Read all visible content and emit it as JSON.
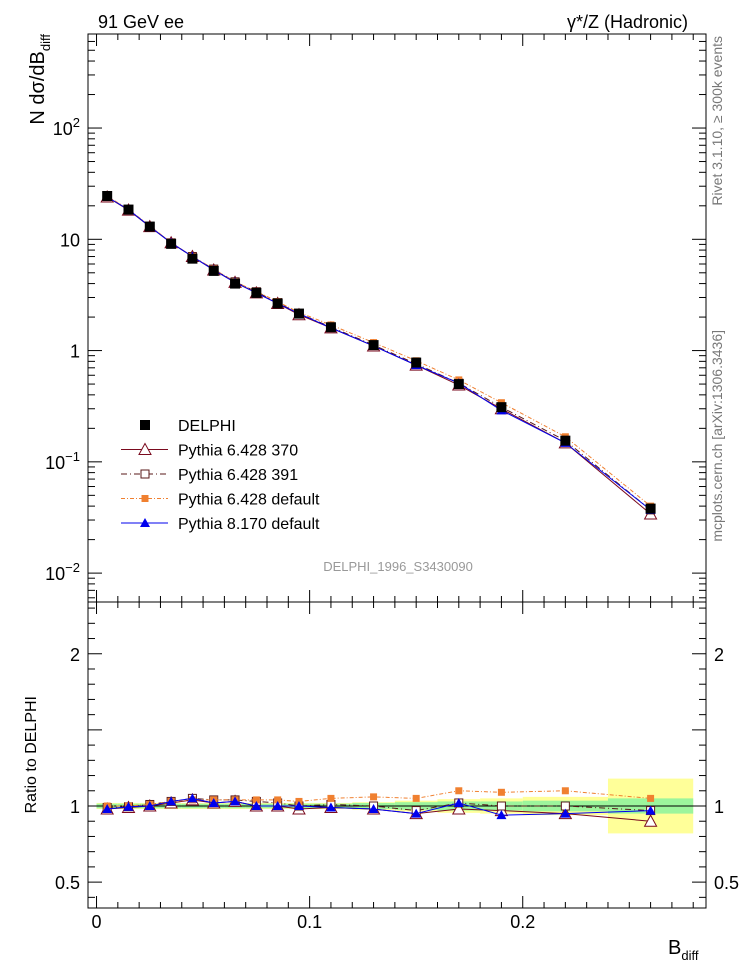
{
  "header": {
    "left": "91 GeV ee",
    "right": "γ*/Z (Hadronic)"
  },
  "side_labels": {
    "top": "Rivet 3.1.10, ≥ 300k events",
    "bottom": "mcplots.cern.ch [arXiv:1306.3436]"
  },
  "watermark": "DELPHI_1996_S3430090",
  "colors": {
    "data": "#000000",
    "p370": "#7a0a1e",
    "p391": "#5a1a1a",
    "pdef": "#f08030",
    "p8": "#0000ee",
    "band_inner": "#9cf59c",
    "band_outer": "#ffff99"
  },
  "chart_data": [
    {
      "type": "line",
      "panel": "main",
      "ylabel_main": "N dσ/dB",
      "ylabel_sub": "diff",
      "yscale": "log",
      "xlim": [
        -0.004,
        0.286
      ],
      "ylim": [
        0.0055,
        700
      ],
      "y_tick_labels": [
        {
          "value": 0.01,
          "base": "10",
          "exp": "−2"
        },
        {
          "value": 0.1,
          "base": "10",
          "exp": "−1"
        },
        {
          "value": 1,
          "text": "1"
        },
        {
          "value": 10,
          "text": "10"
        },
        {
          "value": 100,
          "base": "10",
          "exp": "2"
        }
      ],
      "x": [
        0.005,
        0.015,
        0.025,
        0.035,
        0.045,
        0.055,
        0.065,
        0.075,
        0.085,
        0.095,
        0.11,
        0.13,
        0.15,
        0.17,
        0.19,
        0.22,
        0.26
      ],
      "legend_position": "lower-left",
      "series": [
        {
          "name": "DELPHI",
          "key": "data",
          "marker": "filled-square",
          "values": [
            24.5,
            18.5,
            13.0,
            9.1,
            6.7,
            5.2,
            4.0,
            3.3,
            2.65,
            2.15,
            1.62,
            1.12,
            0.78,
            0.5,
            0.31,
            0.155,
            0.038
          ]
        },
        {
          "name": "Pythia 6.428 370",
          "key": "p370",
          "marker": "open-triangle",
          "values": [
            24.0,
            18.3,
            13.0,
            9.3,
            7.0,
            5.3,
            4.1,
            3.3,
            2.65,
            2.1,
            1.6,
            1.1,
            0.74,
            0.49,
            0.3,
            0.148,
            0.034
          ]
        },
        {
          "name": "Pythia 6.428 391",
          "key": "p391",
          "marker": "open-square",
          "values": [
            24.2,
            18.4,
            13.1,
            9.3,
            7.0,
            5.4,
            4.15,
            3.38,
            2.7,
            2.15,
            1.63,
            1.12,
            0.76,
            0.51,
            0.31,
            0.155,
            0.037
          ]
        },
        {
          "name": "Pythia 6.428 default",
          "key": "pdef",
          "marker": "filled-square-small",
          "values": [
            24.5,
            18.6,
            13.2,
            9.4,
            7.0,
            5.4,
            4.15,
            3.4,
            2.75,
            2.2,
            1.7,
            1.18,
            0.81,
            0.545,
            0.34,
            0.168,
            0.04
          ]
        },
        {
          "name": "Pythia 8.170 default",
          "key": "p8",
          "marker": "filled-triangle",
          "values": [
            24.0,
            18.5,
            13.0,
            9.3,
            7.0,
            5.3,
            4.1,
            3.3,
            2.65,
            2.15,
            1.6,
            1.1,
            0.74,
            0.51,
            0.29,
            0.148,
            0.037
          ]
        }
      ]
    },
    {
      "type": "line",
      "panel": "ratio",
      "ylabel": "Ratio to DELPHI",
      "xlabel_main": "B",
      "xlabel_sub": "diff",
      "xlim": [
        -0.004,
        0.286
      ],
      "ylim": [
        0.33,
        2.34
      ],
      "x_tick_labels": [
        {
          "value": 0,
          "text": "0"
        },
        {
          "value": 0.1,
          "text": "0.1"
        },
        {
          "value": 0.2,
          "text": "0.2"
        }
      ],
      "y_tick_labels": [
        {
          "value": 0.5,
          "text": "0.5"
        },
        {
          "value": 1,
          "text": "1"
        },
        {
          "value": 2,
          "text": "2"
        }
      ],
      "bins": [
        0.0,
        0.01,
        0.02,
        0.03,
        0.04,
        0.05,
        0.06,
        0.07,
        0.08,
        0.09,
        0.1,
        0.12,
        0.14,
        0.16,
        0.18,
        0.2,
        0.24,
        0.28
      ],
      "band_inner_halfwidth": [
        0.015,
        0.015,
        0.015,
        0.015,
        0.015,
        0.015,
        0.015,
        0.015,
        0.015,
        0.015,
        0.015,
        0.02,
        0.025,
        0.03,
        0.03,
        0.035,
        0.05
      ],
      "band_outer_halfwidth": [
        0.02,
        0.02,
        0.02,
        0.02,
        0.02,
        0.02,
        0.02,
        0.02,
        0.02,
        0.02,
        0.02,
        0.025,
        0.035,
        0.045,
        0.05,
        0.06,
        0.18
      ],
      "x": [
        0.005,
        0.015,
        0.025,
        0.035,
        0.045,
        0.055,
        0.065,
        0.075,
        0.085,
        0.095,
        0.11,
        0.13,
        0.15,
        0.17,
        0.19,
        0.22,
        0.26
      ],
      "series": [
        {
          "key": "p370",
          "marker": "open-triangle",
          "values": [
            0.98,
            0.99,
            1.0,
            1.02,
            1.04,
            1.02,
            1.03,
            1.0,
            1.0,
            0.98,
            0.99,
            0.98,
            0.95,
            0.98,
            0.97,
            0.95,
            0.9
          ]
        },
        {
          "key": "p391",
          "marker": "open-square",
          "values": [
            0.99,
            0.995,
            1.01,
            1.03,
            1.05,
            1.04,
            1.04,
            1.03,
            1.02,
            1.0,
            1.01,
            1.0,
            0.97,
            1.02,
            1.0,
            1.0,
            0.97
          ]
        },
        {
          "key": "pdef",
          "marker": "filled-square-small",
          "values": [
            1.0,
            1.0,
            1.01,
            1.03,
            1.04,
            1.04,
            1.04,
            1.04,
            1.04,
            1.03,
            1.05,
            1.06,
            1.05,
            1.1,
            1.09,
            1.1,
            1.05
          ]
        },
        {
          "key": "p8",
          "marker": "filled-triangle",
          "values": [
            0.98,
            0.995,
            1.0,
            1.03,
            1.05,
            1.02,
            1.03,
            1.0,
            1.0,
            1.0,
            0.99,
            0.98,
            0.95,
            1.02,
            0.94,
            0.95,
            0.97
          ]
        }
      ]
    }
  ]
}
